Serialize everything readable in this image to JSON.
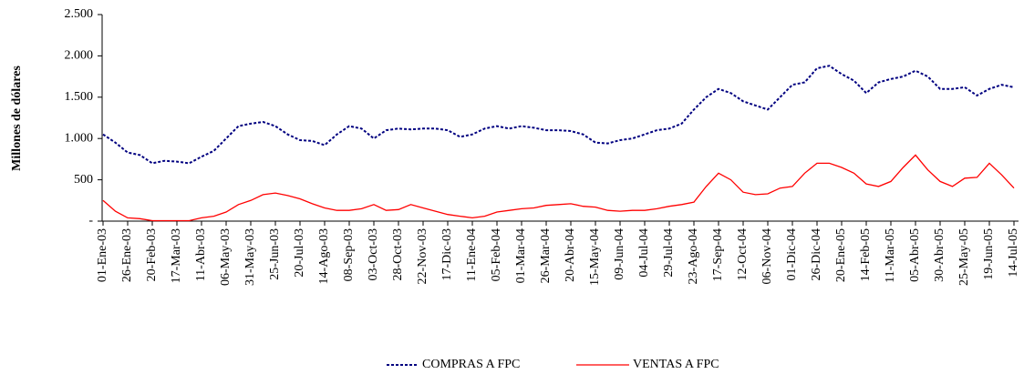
{
  "chart_data": {
    "type": "line",
    "y_label": "Millones de dólares",
    "categories": [
      "01-Ene-03",
      null,
      "26-Ene-03",
      null,
      "20-Feb-03",
      null,
      "17-Mar-03",
      null,
      "11-Abr-03",
      null,
      "06-May-03",
      null,
      "31-May-03",
      null,
      "25-Jun-03",
      null,
      "20-Jul-03",
      null,
      "14-Ago-03",
      null,
      "08-Sep-03",
      null,
      "03-Oct-03",
      null,
      "28-Oct-03",
      null,
      "22-Nov-03",
      null,
      "17-Dic-03",
      null,
      "11-Ene-04",
      null,
      "05-Feb-04",
      null,
      "01-Mar-04",
      null,
      "26-Mar-04",
      null,
      "20-Abr-04",
      null,
      "15-May-04",
      null,
      "09-Jun-04",
      null,
      "04-Jul-04",
      null,
      "29-Jul-04",
      null,
      "23-Ago-04",
      null,
      "17-Sep-04",
      null,
      "12-Oct-04",
      null,
      "06-Nov-04",
      null,
      "01-Dic-04",
      null,
      "26-Dic-04",
      null,
      "20-Ene-05",
      null,
      "14-Feb-05",
      null,
      "11-Mar-05",
      null,
      "05-Abr-05",
      null,
      "30-Abr-05",
      null,
      "25-May-05",
      null,
      "19-Jun-05",
      null,
      "14-Jul-05"
    ],
    "series": [
      {
        "name": "COMPRAS A FPC",
        "color": "#000080",
        "dashed": true,
        "values": [
          1050,
          950,
          830,
          800,
          700,
          730,
          720,
          700,
          780,
          850,
          1000,
          1150,
          1180,
          1200,
          1150,
          1050,
          980,
          970,
          920,
          1050,
          1150,
          1120,
          1000,
          1100,
          1120,
          1110,
          1120,
          1120,
          1100,
          1020,
          1050,
          1120,
          1150,
          1120,
          1150,
          1130,
          1100,
          1100,
          1090,
          1050,
          950,
          940,
          980,
          1000,
          1050,
          1100,
          1120,
          1180,
          1350,
          1500,
          1600,
          1550,
          1450,
          1400,
          1350,
          1500,
          1650,
          1680,
          1850,
          1880,
          1780,
          1700,
          1550,
          1680,
          1720,
          1750,
          1820,
          1750,
          1600,
          1600,
          1620,
          1520,
          1600,
          1650,
          1620
        ]
      },
      {
        "name": "VENTAS A FPC",
        "color": "#ff0000",
        "dashed": false,
        "values": [
          250,
          120,
          40,
          30,
          5,
          5,
          5,
          5,
          40,
          60,
          110,
          200,
          250,
          320,
          340,
          310,
          270,
          210,
          160,
          130,
          130,
          150,
          200,
          130,
          140,
          200,
          160,
          120,
          80,
          60,
          40,
          60,
          110,
          130,
          150,
          160,
          190,
          200,
          210,
          180,
          170,
          130,
          120,
          130,
          130,
          150,
          180,
          200,
          230,
          420,
          580,
          500,
          350,
          320,
          330,
          400,
          420,
          580,
          700,
          700,
          650,
          580,
          450,
          420,
          480,
          650,
          800,
          620,
          480,
          420,
          520,
          530,
          700,
          560,
          400
        ]
      }
    ],
    "ylim": [
      0,
      2500
    ],
    "yticks": [
      {
        "value": 0,
        "label": "-"
      },
      500,
      {
        "value": 1000,
        "label": "1.000"
      },
      {
        "value": 1500,
        "label": "1.500"
      },
      {
        "value": 2000,
        "label": "2.000"
      },
      {
        "value": 2500,
        "label": "2.500"
      }
    ],
    "grid": false,
    "legend": "bottom"
  }
}
